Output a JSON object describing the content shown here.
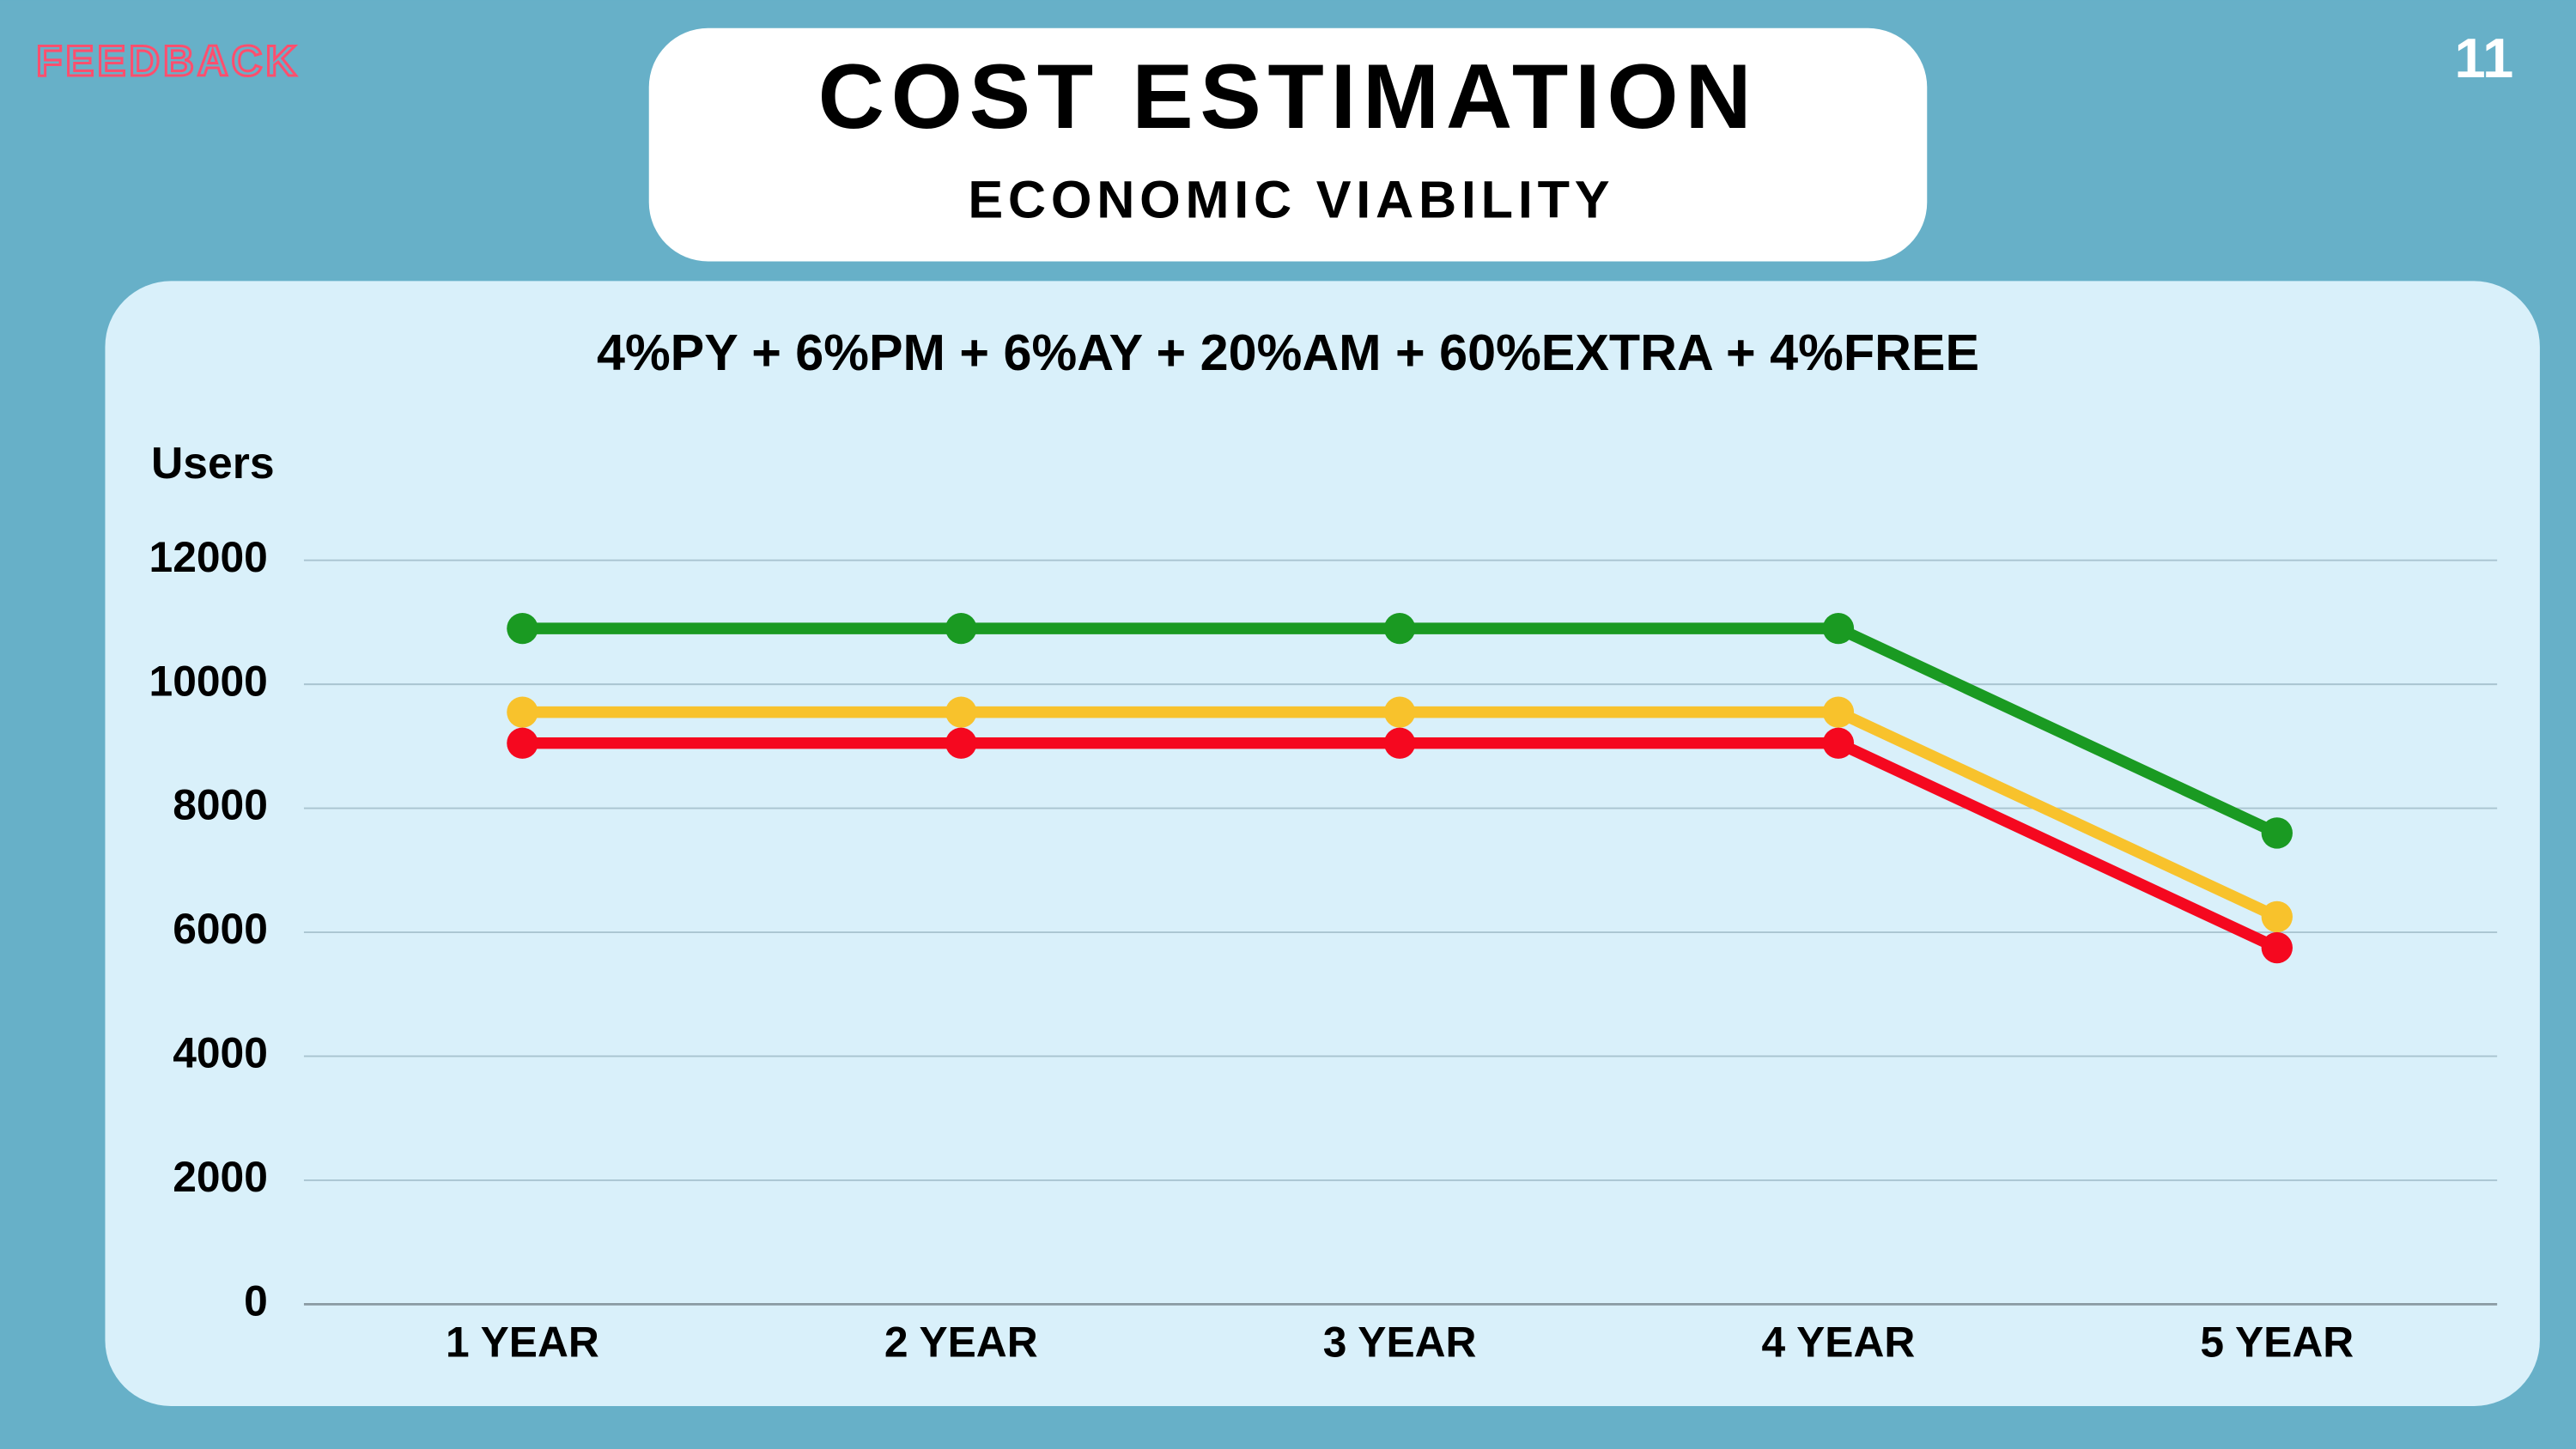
{
  "header": {
    "brand": "FEEDBACK",
    "page_number": "11"
  },
  "chart_data": {
    "type": "line",
    "title": "COST ESTIMATION",
    "subtitle": "ECONOMIC VIABILITY",
    "formula": "4%PY + 6%PM + 6%AY + 20%AM + 60%EXTRA + 4%FREE",
    "y_label": "Users",
    "categories": [
      "1 YEAR",
      "2 YEAR",
      "3 YEAR",
      "4 YEAR",
      "5 YEAR"
    ],
    "series": [
      {
        "color": "#1a9a22",
        "values": [
          10900,
          10900,
          10900,
          10900,
          7600
        ]
      },
      {
        "color": "#f8c22c",
        "values": [
          9550,
          9550,
          9550,
          9550,
          6250
        ]
      },
      {
        "color": "#f5081f",
        "values": [
          9050,
          9050,
          9050,
          9050,
          5750
        ]
      }
    ],
    "ylim": [
      0,
      12000
    ],
    "yticks": [
      0,
      2000,
      4000,
      6000,
      8000,
      10000,
      12000
    ],
    "grid": true
  }
}
